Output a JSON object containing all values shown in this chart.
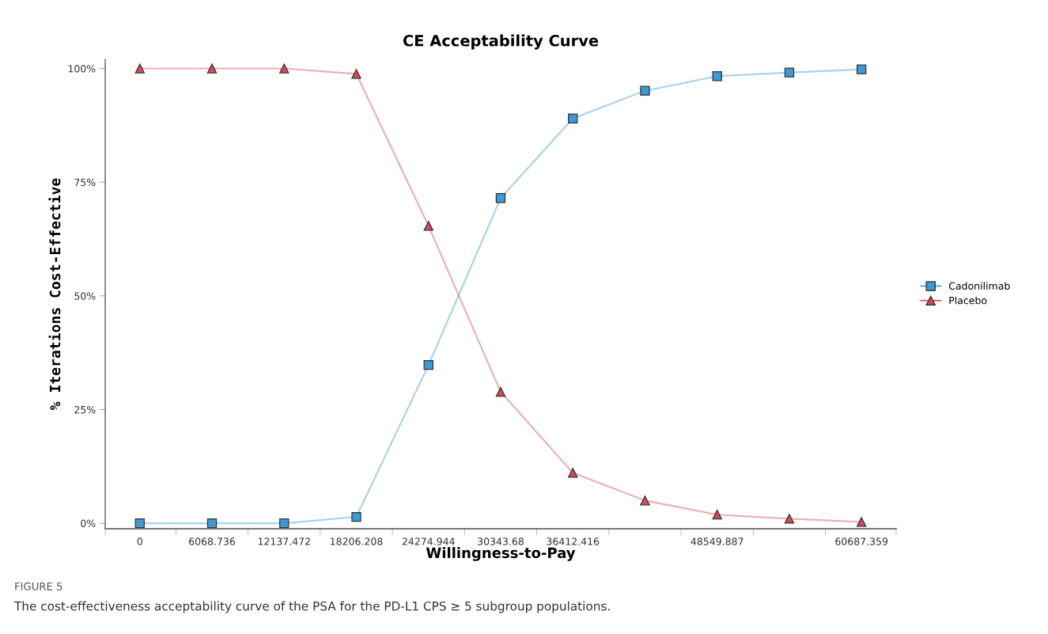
{
  "chart_data": {
    "type": "line",
    "title": "CE Acceptability Curve",
    "xlabel": "Willingness-to-Pay",
    "ylabel": "% Iterations Cost-Effective",
    "categories": [
      "0",
      "6068.736",
      "12137.472",
      "18206.208",
      "24274.944",
      "30343.68",
      "36412.416",
      null,
      "48549.887",
      null,
      "60687.359"
    ],
    "series": [
      {
        "name": "Cadonilimab",
        "color": "#3d9ad6",
        "marker": "square",
        "values": [
          0,
          0,
          0,
          1.4,
          34.8,
          71.5,
          89.0,
          95.1,
          98.3,
          99.1,
          99.8
        ]
      },
      {
        "name": "Placebo",
        "color": "#d9485a",
        "marker": "triangle",
        "values": [
          100,
          100,
          100,
          98.8,
          65.4,
          28.9,
          11.1,
          5.0,
          1.9,
          1.0,
          0.3
        ]
      }
    ],
    "ylim": [
      -1.2,
      102
    ],
    "yticks": [
      {
        "value": 0,
        "label": "0%"
      },
      {
        "value": 25,
        "label": "25%"
      },
      {
        "value": 50,
        "label": "50%"
      },
      {
        "value": 75,
        "label": "75%"
      },
      {
        "value": 100,
        "label": "100%"
      }
    ],
    "grid": false,
    "legend": "right",
    "line_style": "solid",
    "annotations": [
      "FIGURE 5",
      "The cost-effectiveness acceptability curve of the PSA for the PD-L1 CPS ≥ 5 subgroup populations."
    ]
  }
}
